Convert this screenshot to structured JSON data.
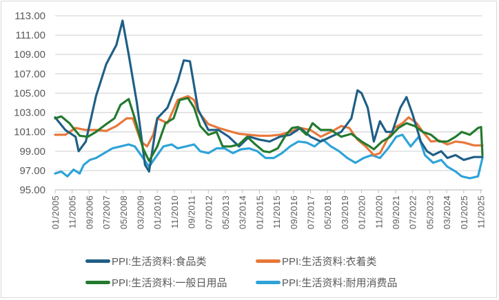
{
  "chart_data": {
    "type": "line",
    "title": "",
    "xlabel": "",
    "ylabel": "",
    "ylim": [
      95,
      113
    ],
    "xlim": [
      2005.0,
      2025.917
    ],
    "yticks": [
      "95.00",
      "97.00",
      "99.00",
      "101.00",
      "103.00",
      "105.00",
      "107.00",
      "109.00",
      "111.00",
      "113.00"
    ],
    "xticks": [
      "01/2005",
      "11/2005",
      "09/2006",
      "07/2007",
      "05/2008",
      "03/2009",
      "01/2010",
      "11/2010",
      "09/2011",
      "07/2012",
      "05/2013",
      "03/2014",
      "01/2015",
      "11/2015",
      "09/2016",
      "07/2017",
      "05/2018",
      "03/2019",
      "01/2020",
      "11/2020",
      "09/2021",
      "07/2022",
      "05/2023",
      "03/2024",
      "01/2025",
      "11/2025"
    ],
    "grid": true,
    "legend_position": "bottom",
    "series": [
      {
        "name": "PPI:生活资料:食品类",
        "color": "#1f5f86",
        "x": [
          2005.0,
          2005.5,
          2006.0,
          2006.15,
          2006.5,
          2007.0,
          2007.5,
          2008.0,
          2008.3,
          2008.6,
          2009.0,
          2009.4,
          2009.6,
          2010.0,
          2010.5,
          2011.0,
          2011.3,
          2011.6,
          2012.0,
          2012.5,
          2013.0,
          2013.5,
          2014.0,
          2014.5,
          2015.0,
          2015.5,
          2016.0,
          2016.5,
          2017.0,
          2017.5,
          2018.0,
          2018.5,
          2019.0,
          2019.5,
          2019.8,
          2020.0,
          2020.3,
          2020.6,
          2020.9,
          2021.2,
          2021.5,
          2021.9,
          2022.2,
          2022.5,
          2022.9,
          2023.2,
          2023.5,
          2023.9,
          2024.2,
          2024.6,
          2025.0,
          2025.5,
          2025.917
        ],
        "y": [
          102.5,
          101.2,
          100.5,
          99.0,
          100.0,
          104.7,
          108.0,
          110.0,
          112.5,
          109.0,
          104.0,
          97.6,
          96.9,
          102.4,
          103.5,
          106.2,
          108.4,
          108.3,
          103.3,
          101.2,
          101.2,
          100.5,
          99.5,
          100.5,
          100.2,
          100.0,
          100.5,
          100.7,
          101.4,
          100.5,
          100.0,
          100.5,
          101.0,
          102.4,
          105.3,
          105.0,
          103.5,
          100.0,
          102.1,
          101.0,
          101.0,
          103.5,
          104.6,
          102.8,
          100.0,
          99.0,
          98.6,
          99.0,
          98.3,
          98.6,
          98.1,
          98.4,
          98.4
        ]
      },
      {
        "name": "PPI:生活资料:衣着类",
        "color": "#e8773a",
        "x": [
          2005.0,
          2005.5,
          2006.0,
          2006.5,
          2007.0,
          2007.5,
          2008.0,
          2008.5,
          2008.8,
          2009.2,
          2009.5,
          2009.8,
          2010.0,
          2010.5,
          2011.0,
          2011.5,
          2011.8,
          2012.0,
          2012.5,
          2013.0,
          2013.5,
          2014.0,
          2014.5,
          2015.0,
          2015.5,
          2016.0,
          2016.5,
          2017.0,
          2017.5,
          2018.0,
          2018.5,
          2019.0,
          2019.4,
          2019.8,
          2020.2,
          2020.6,
          2020.9,
          2021.2,
          2021.6,
          2022.0,
          2022.3,
          2022.7,
          2023.0,
          2023.4,
          2023.8,
          2024.2,
          2024.6,
          2025.0,
          2025.5,
          2025.917
        ],
        "y": [
          100.7,
          100.7,
          101.4,
          101.2,
          101.2,
          101.1,
          101.6,
          102.4,
          102.4,
          100.0,
          99.5,
          100.7,
          102.4,
          101.9,
          104.3,
          104.7,
          104.3,
          103.1,
          101.8,
          101.4,
          101.1,
          100.8,
          100.7,
          100.6,
          100.6,
          100.7,
          101.0,
          101.4,
          101.2,
          100.5,
          101.0,
          101.6,
          101.4,
          100.2,
          99.5,
          98.6,
          98.8,
          100.0,
          101.4,
          101.9,
          102.5,
          101.9,
          101.0,
          100.0,
          100.1,
          99.7,
          100.0,
          99.9,
          99.6,
          99.6
        ]
      },
      {
        "name": "PPI:生活资料:一般日用品",
        "color": "#237a2e",
        "x": [
          2005.0,
          2005.3,
          2005.7,
          2006.2,
          2006.6,
          2007.0,
          2007.5,
          2007.9,
          2008.2,
          2008.6,
          2008.9,
          2009.3,
          2009.6,
          2010.0,
          2010.4,
          2010.8,
          2011.1,
          2011.5,
          2011.8,
          2012.1,
          2012.5,
          2012.9,
          2013.2,
          2013.6,
          2014.0,
          2014.4,
          2014.8,
          2015.2,
          2015.5,
          2015.9,
          2016.3,
          2016.6,
          2016.9,
          2017.3,
          2017.6,
          2018.0,
          2018.5,
          2019.0,
          2019.5,
          2020.0,
          2020.4,
          2020.6,
          2021.0,
          2021.4,
          2021.8,
          2022.2,
          2022.6,
          2023.0,
          2023.4,
          2023.8,
          2024.2,
          2024.6,
          2024.9,
          2025.3,
          2025.7,
          2025.85,
          2025.917
        ],
        "y": [
          102.4,
          102.6,
          101.9,
          100.6,
          100.5,
          101.0,
          101.8,
          102.4,
          103.8,
          104.4,
          102.4,
          99.3,
          98.0,
          99.5,
          101.9,
          102.4,
          104.3,
          104.5,
          103.5,
          101.6,
          100.7,
          101.0,
          99.5,
          99.5,
          99.7,
          100.5,
          99.7,
          99.0,
          98.9,
          99.3,
          100.7,
          101.4,
          101.5,
          100.7,
          101.9,
          101.2,
          101.2,
          100.5,
          100.8,
          100.0,
          99.5,
          99.2,
          100.0,
          100.5,
          101.4,
          101.9,
          101.6,
          101.0,
          100.7,
          100.0,
          100.0,
          100.5,
          101.0,
          100.7,
          101.4,
          101.5,
          98.6
        ]
      },
      {
        "name": "PPI:生活资料:耐用消费品",
        "color": "#2ea3d8",
        "x": [
          2005.0,
          2005.3,
          2005.6,
          2005.9,
          2006.2,
          2006.4,
          2006.7,
          2007.0,
          2007.4,
          2007.8,
          2008.2,
          2008.6,
          2008.9,
          2009.3,
          2009.6,
          2009.9,
          2010.3,
          2010.7,
          2011.0,
          2011.4,
          2011.8,
          2012.1,
          2012.5,
          2012.9,
          2013.3,
          2013.7,
          2014.1,
          2014.5,
          2014.9,
          2015.3,
          2015.7,
          2016.1,
          2016.5,
          2016.9,
          2017.3,
          2017.7,
          2018.1,
          2018.5,
          2018.9,
          2019.3,
          2019.7,
          2020.1,
          2020.5,
          2020.9,
          2021.3,
          2021.7,
          2022.0,
          2022.4,
          2022.8,
          2023.1,
          2023.5,
          2023.9,
          2024.2,
          2024.6,
          2024.9,
          2025.3,
          2025.7,
          2025.917
        ],
        "y": [
          96.7,
          96.9,
          96.4,
          97.1,
          96.7,
          97.6,
          98.1,
          98.3,
          98.8,
          99.3,
          99.5,
          99.7,
          99.5,
          98.3,
          97.4,
          98.3,
          99.5,
          99.7,
          99.3,
          99.5,
          99.7,
          99.0,
          98.8,
          99.3,
          99.3,
          98.8,
          99.2,
          99.3,
          99.0,
          98.3,
          98.3,
          98.8,
          99.5,
          100.0,
          99.9,
          99.5,
          100.2,
          99.5,
          99.0,
          98.3,
          97.8,
          98.3,
          98.6,
          98.3,
          99.3,
          100.5,
          100.7,
          99.5,
          100.5,
          98.6,
          97.8,
          98.1,
          97.4,
          96.9,
          96.4,
          96.2,
          96.4,
          98.3
        ]
      }
    ]
  }
}
